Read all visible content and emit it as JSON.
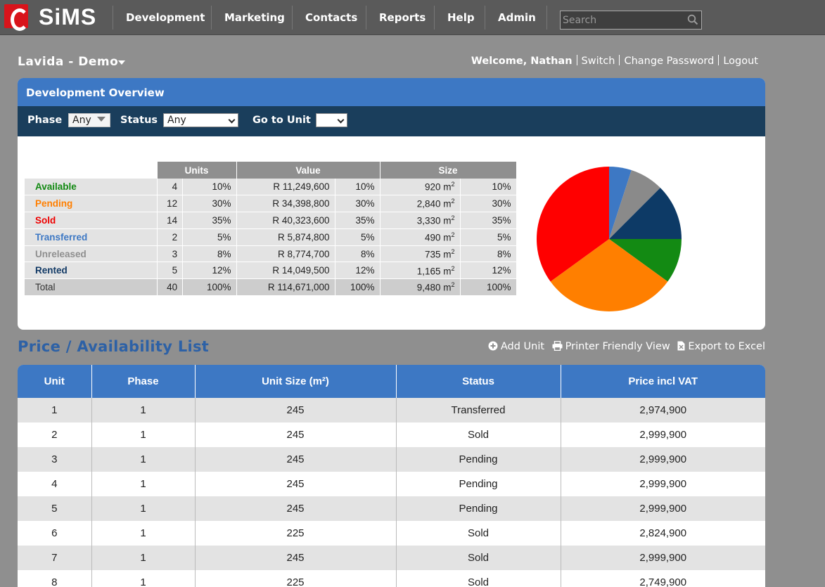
{
  "app": {
    "logo": "SiMS"
  },
  "nav": [
    "Development",
    "Marketing",
    "Contacts",
    "Reports",
    "Help",
    "Admin"
  ],
  "search": {
    "placeholder": "Search"
  },
  "project": {
    "name": "Lavida - Demo"
  },
  "user": {
    "welcome": "Welcome, Nathan",
    "links": [
      "Switch",
      "Change Password",
      "Logout"
    ]
  },
  "overview": {
    "title": "Development Overview",
    "filters": {
      "phase_label": "Phase",
      "phase_value": "Any",
      "status_label": "Status",
      "status_value": "Any",
      "goto_label": "Go to Unit",
      "goto_value": ""
    },
    "headers": [
      "Units",
      "Value",
      "Size"
    ],
    "rows": [
      {
        "label": "Available",
        "color": "#138a13",
        "units": "4",
        "units_pct": "10%",
        "value": "R 11,249,600",
        "value_pct": "10%",
        "size": "920 m",
        "size_pct": "10%"
      },
      {
        "label": "Pending",
        "color": "#ff7f00",
        "units": "12",
        "units_pct": "30%",
        "value": "R 34,398,800",
        "value_pct": "30%",
        "size": "2,840 m",
        "size_pct": "30%"
      },
      {
        "label": "Sold",
        "color": "#ee0000",
        "units": "14",
        "units_pct": "35%",
        "value": "R 40,323,600",
        "value_pct": "35%",
        "size": "3,330 m",
        "size_pct": "35%"
      },
      {
        "label": "Transferred",
        "color": "#3d78c4",
        "units": "2",
        "units_pct": "5%",
        "value": "R 5,874,800",
        "value_pct": "5%",
        "size": "490 m",
        "size_pct": "5%"
      },
      {
        "label": "Unreleased",
        "color": "#8f8f8f",
        "units": "3",
        "units_pct": "8%",
        "value": "R 8,774,700",
        "value_pct": "8%",
        "size": "735 m",
        "size_pct": "8%"
      },
      {
        "label": "Rented",
        "color": "#123a66",
        "units": "5",
        "units_pct": "12%",
        "value": "R 14,049,500",
        "value_pct": "12%",
        "size": "1,165 m",
        "size_pct": "12%"
      }
    ],
    "total": {
      "label": "Total",
      "units": "40",
      "units_pct": "100%",
      "value": "R 114,671,000",
      "value_pct": "100%",
      "size": "9,480 m",
      "size_pct": "100%"
    },
    "size_unit_exp": "2",
    "pie": [
      {
        "status": "Transferred",
        "units": 2,
        "color": "#3d78c4"
      },
      {
        "status": "Unreleased",
        "units": 3,
        "color": "#8a8a8a"
      },
      {
        "status": "Rented",
        "units": 5,
        "color": "#0d3a66"
      },
      {
        "status": "Available",
        "units": 4,
        "color": "#138a13"
      },
      {
        "status": "Pending",
        "units": 12,
        "color": "#ff7f00"
      },
      {
        "status": "Sold",
        "units": 14,
        "color": "#ff0000"
      }
    ]
  },
  "list": {
    "title": "Price / Availability List",
    "actions": {
      "add": "Add Unit",
      "print": "Printer Friendly View",
      "export": "Export to Excel"
    },
    "columns": [
      "Unit",
      "Phase",
      "Unit Size (m²)",
      "Status",
      "Price incl VAT"
    ],
    "rows": [
      [
        "1",
        "1",
        "245",
        "Transferred",
        "2,974,900"
      ],
      [
        "2",
        "1",
        "245",
        "Sold",
        "2,999,900"
      ],
      [
        "3",
        "1",
        "245",
        "Pending",
        "2,999,900"
      ],
      [
        "4",
        "1",
        "245",
        "Pending",
        "2,999,900"
      ],
      [
        "5",
        "1",
        "245",
        "Pending",
        "2,999,900"
      ],
      [
        "6",
        "1",
        "225",
        "Sold",
        "2,824,900"
      ],
      [
        "7",
        "1",
        "245",
        "Sold",
        "2,999,900"
      ],
      [
        "8",
        "1",
        "225",
        "Sold",
        "2,749,900"
      ]
    ]
  }
}
